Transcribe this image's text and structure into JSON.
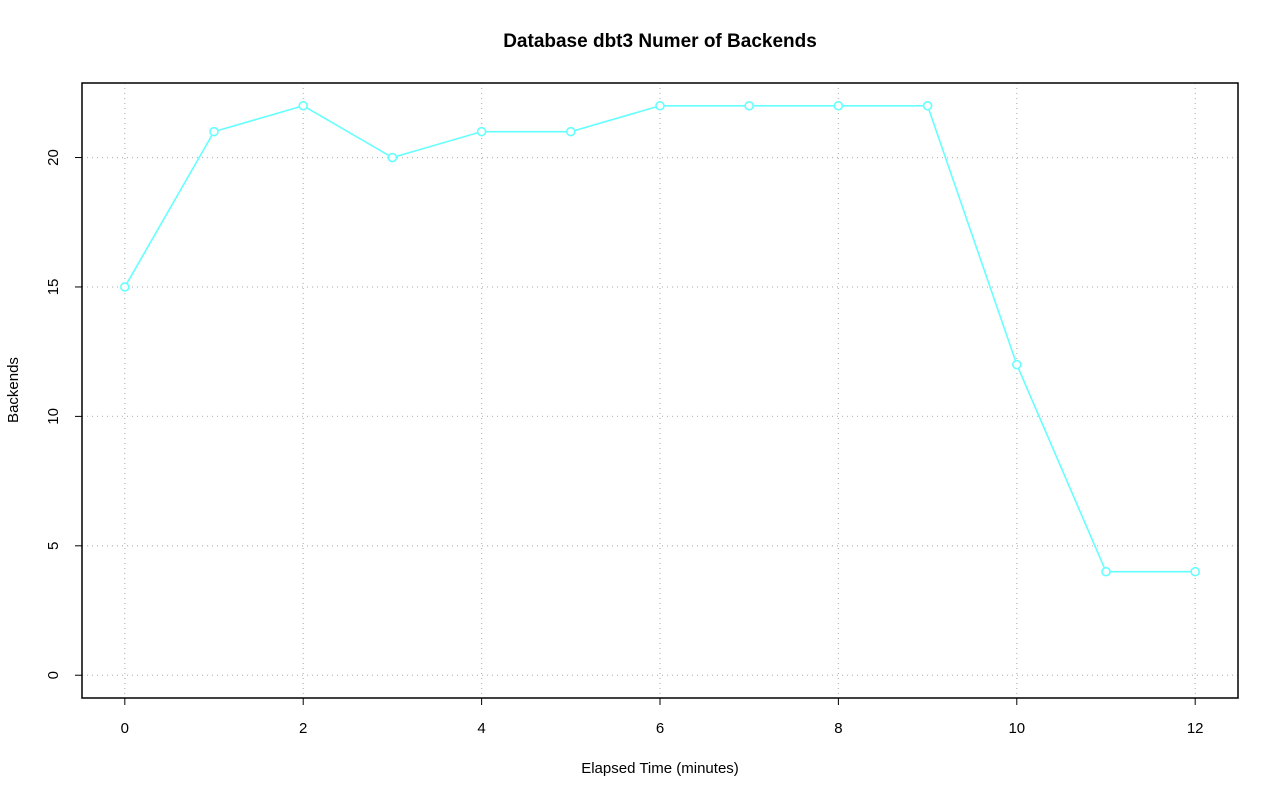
{
  "chart_data": {
    "type": "line",
    "title": "Database dbt3 Numer of Backends",
    "x_label": "Elapsed Time (minutes)",
    "y_label": "Backends",
    "x": [
      0,
      1,
      2,
      3,
      4,
      5,
      6,
      7,
      8,
      9,
      10,
      11,
      12
    ],
    "series": [
      {
        "color": "#66ffff",
        "values": [
          15,
          21,
          22,
          20,
          21,
          21,
          22,
          22,
          22,
          22,
          12,
          4,
          4
        ]
      }
    ],
    "xlim": [
      -0.48,
      12.48
    ],
    "xticks": [
      0,
      2,
      4,
      6,
      8,
      10,
      12
    ],
    "ylim": [
      -0.88,
      22.88
    ],
    "yticks": [
      0,
      5,
      10,
      15,
      20
    ],
    "grid": true
  }
}
